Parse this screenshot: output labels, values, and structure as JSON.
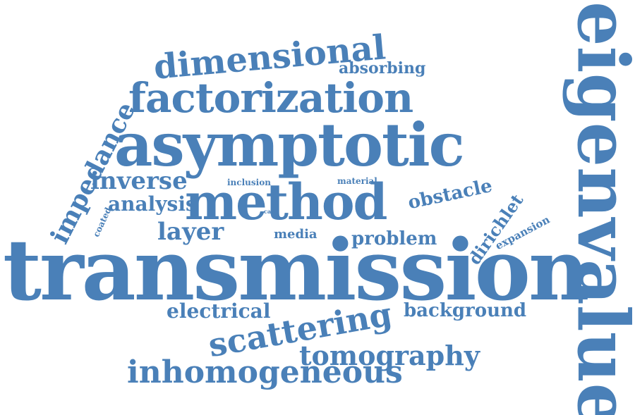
{
  "color": "#4a80b8",
  "words": {
    "transmission": "transmission",
    "eigenvalue": "eigenvalue",
    "asymptotic": "asymptotic",
    "method": "method",
    "factorization": "factorization",
    "dimensional": "dimensional",
    "scattering": "scattering",
    "inhomogeneous": "inhomogeneous",
    "tomography": "tomography",
    "impedance": "impedance",
    "inverse": "inverse",
    "layer": "layer",
    "analysis": "analysis",
    "obstacle": "obstacle",
    "problem": "problem",
    "dirichlet": "dirichlet",
    "electrical": "electrical",
    "background": "background",
    "absorbing": "absorbing",
    "media": "media",
    "expansion": "expansion",
    "inclusion": "inclusion",
    "material": "material",
    "coated": "coated",
    "case": "case"
  }
}
